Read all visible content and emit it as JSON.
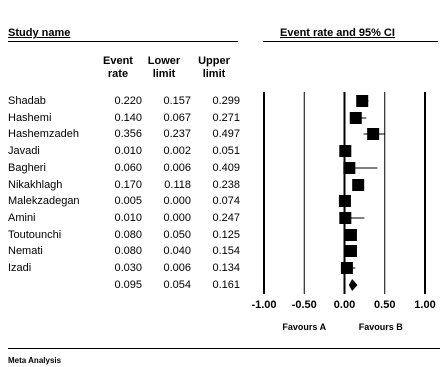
{
  "headers": {
    "study_name": "Study name",
    "event_rate_ci": "Event rate and 95% CI",
    "event_rate_line1": "Event",
    "event_rate_line2": "rate",
    "lower_line1": "Lower",
    "lower_line2": "limit",
    "upper_line1": "Upper",
    "upper_line2": "limit"
  },
  "studies": [
    {
      "name": "Shadab",
      "rate": "0.220",
      "lower": "0.157",
      "upper": "0.299"
    },
    {
      "name": "Hashemi",
      "rate": "0.140",
      "lower": "0.067",
      "upper": "0.271"
    },
    {
      "name": "Hashemzadeh",
      "rate": "0.356",
      "lower": "0.237",
      "upper": "0.497"
    },
    {
      "name": "Javadi",
      "rate": "0.010",
      "lower": "0.002",
      "upper": "0.051"
    },
    {
      "name": "Bagheri",
      "rate": "0.060",
      "lower": "0.006",
      "upper": "0.409"
    },
    {
      "name": "Nikakhlagh",
      "rate": "0.170",
      "lower": "0.118",
      "upper": "0.238"
    },
    {
      "name": "Malekzadegan",
      "rate": "0.005",
      "lower": "0.000",
      "upper": "0.074"
    },
    {
      "name": "Amini",
      "rate": "0.010",
      "lower": "0.000",
      "upper": "0.247"
    },
    {
      "name": "Toutounchi",
      "rate": "0.080",
      "lower": "0.050",
      "upper": "0.125"
    },
    {
      "name": "Nemati",
      "rate": "0.080",
      "lower": "0.040",
      "upper": "0.154"
    },
    {
      "name": "Izadi",
      "rate": "0.030",
      "lower": "0.006",
      "upper": "0.134"
    }
  ],
  "pooled": {
    "name": "",
    "rate": "0.095",
    "lower": "0.054",
    "upper": "0.161"
  },
  "footer": "Meta Analysis",
  "chart_data": {
    "type": "forest",
    "xlim": [
      -1.0,
      1.0
    ],
    "tick_labels": [
      "-1.00",
      "-0.50",
      "0.00",
      "0.50",
      "1.00"
    ],
    "tick_values": [
      -1.0,
      -0.5,
      0.0,
      0.5,
      1.0
    ],
    "favours_left": "Favours A",
    "favours_right": "Favours B",
    "points": [
      {
        "rate": 0.22,
        "lower": 0.157,
        "upper": 0.299
      },
      {
        "rate": 0.14,
        "lower": 0.067,
        "upper": 0.271
      },
      {
        "rate": 0.356,
        "lower": 0.237,
        "upper": 0.497
      },
      {
        "rate": 0.01,
        "lower": 0.002,
        "upper": 0.051
      },
      {
        "rate": 0.06,
        "lower": 0.006,
        "upper": 0.409
      },
      {
        "rate": 0.17,
        "lower": 0.118,
        "upper": 0.238
      },
      {
        "rate": 0.005,
        "lower": 0.0,
        "upper": 0.074
      },
      {
        "rate": 0.01,
        "lower": 0.0,
        "upper": 0.247
      },
      {
        "rate": 0.08,
        "lower": 0.05,
        "upper": 0.125
      },
      {
        "rate": 0.08,
        "lower": 0.04,
        "upper": 0.154
      },
      {
        "rate": 0.03,
        "lower": 0.006,
        "upper": 0.134
      }
    ],
    "pooled": {
      "rate": 0.095,
      "lower": 0.054,
      "upper": 0.161
    }
  }
}
